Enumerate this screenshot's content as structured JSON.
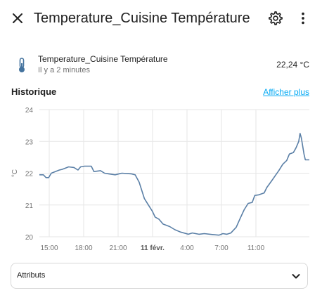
{
  "dialog": {
    "title": "Temperature_Cuisine Température"
  },
  "entity": {
    "name": "Temperature_Cuisine Température",
    "last_changed": "Il y a 2 minutes",
    "state": "22,24 °C",
    "icon": "thermometer-icon"
  },
  "history": {
    "title": "Historique",
    "show_more": "Afficher plus"
  },
  "chart_data": {
    "type": "line",
    "ylabel": "°C",
    "ylim": [
      20,
      24
    ],
    "yticks": [
      "24",
      "23",
      "22",
      "21",
      "20"
    ],
    "xticks": [
      "15:00",
      "18:00",
      "21:00",
      "11 févr.",
      "4:00",
      "7:00",
      "11:00"
    ],
    "grid": true,
    "series": [
      {
        "color": "#5a7fa6",
        "points": [
          [
            0,
            21.95
          ],
          [
            0.03,
            21.95
          ],
          [
            0.05,
            21.86
          ],
          [
            0.07,
            21.86
          ],
          [
            0.09,
            22.0
          ],
          [
            0.12,
            22.05
          ],
          [
            0.15,
            22.1
          ],
          [
            0.17,
            22.12
          ],
          [
            0.19,
            22.15
          ],
          [
            0.22,
            22.2
          ],
          [
            0.26,
            22.18
          ],
          [
            0.29,
            22.1
          ],
          [
            0.31,
            22.2
          ],
          [
            0.34,
            22.22
          ],
          [
            0.39,
            22.22
          ],
          [
            0.41,
            22.05
          ],
          [
            0.46,
            22.08
          ],
          [
            0.49,
            22.0
          ],
          [
            0.52,
            21.98
          ],
          [
            0.57,
            21.95
          ],
          [
            0.62,
            22.0
          ],
          [
            0.69,
            21.98
          ],
          [
            0.72,
            21.95
          ],
          [
            0.75,
            21.72
          ],
          [
            0.79,
            21.2
          ],
          [
            0.82,
            21.0
          ],
          [
            0.85,
            20.8
          ],
          [
            0.87,
            20.62
          ],
          [
            0.9,
            20.55
          ],
          [
            0.93,
            20.4
          ],
          [
            0.98,
            20.32
          ],
          [
            1.02,
            20.22
          ],
          [
            1.06,
            20.15
          ],
          [
            1.12,
            20.08
          ],
          [
            1.15,
            20.12
          ],
          [
            1.2,
            20.08
          ],
          [
            1.24,
            20.1
          ],
          [
            1.3,
            20.07
          ],
          [
            1.35,
            20.05
          ],
          [
            1.38,
            20.1
          ],
          [
            1.41,
            20.08
          ],
          [
            1.44,
            20.12
          ],
          [
            1.48,
            20.3
          ],
          [
            1.51,
            20.58
          ],
          [
            1.54,
            20.85
          ],
          [
            1.57,
            21.05
          ],
          [
            1.6,
            21.08
          ],
          [
            1.62,
            21.3
          ],
          [
            1.65,
            21.32
          ],
          [
            1.69,
            21.38
          ],
          [
            1.71,
            21.55
          ],
          [
            1.75,
            21.78
          ],
          [
            1.78,
            21.96
          ],
          [
            1.8,
            22.08
          ],
          [
            1.83,
            22.28
          ],
          [
            1.86,
            22.4
          ],
          [
            1.88,
            22.6
          ],
          [
            1.91,
            22.65
          ],
          [
            1.93,
            22.8
          ],
          [
            1.95,
            23.0
          ],
          [
            1.96,
            23.25
          ],
          [
            1.97,
            23.1
          ],
          [
            1.99,
            22.6
          ],
          [
            2.0,
            22.42
          ],
          [
            2.03,
            22.42
          ]
        ]
      }
    ]
  },
  "attributes": {
    "label": "Attributs"
  },
  "icons": {
    "close": "close-icon",
    "settings": "gear-icon",
    "menu": "dots-vertical-icon",
    "expand": "chevron-down-icon"
  }
}
